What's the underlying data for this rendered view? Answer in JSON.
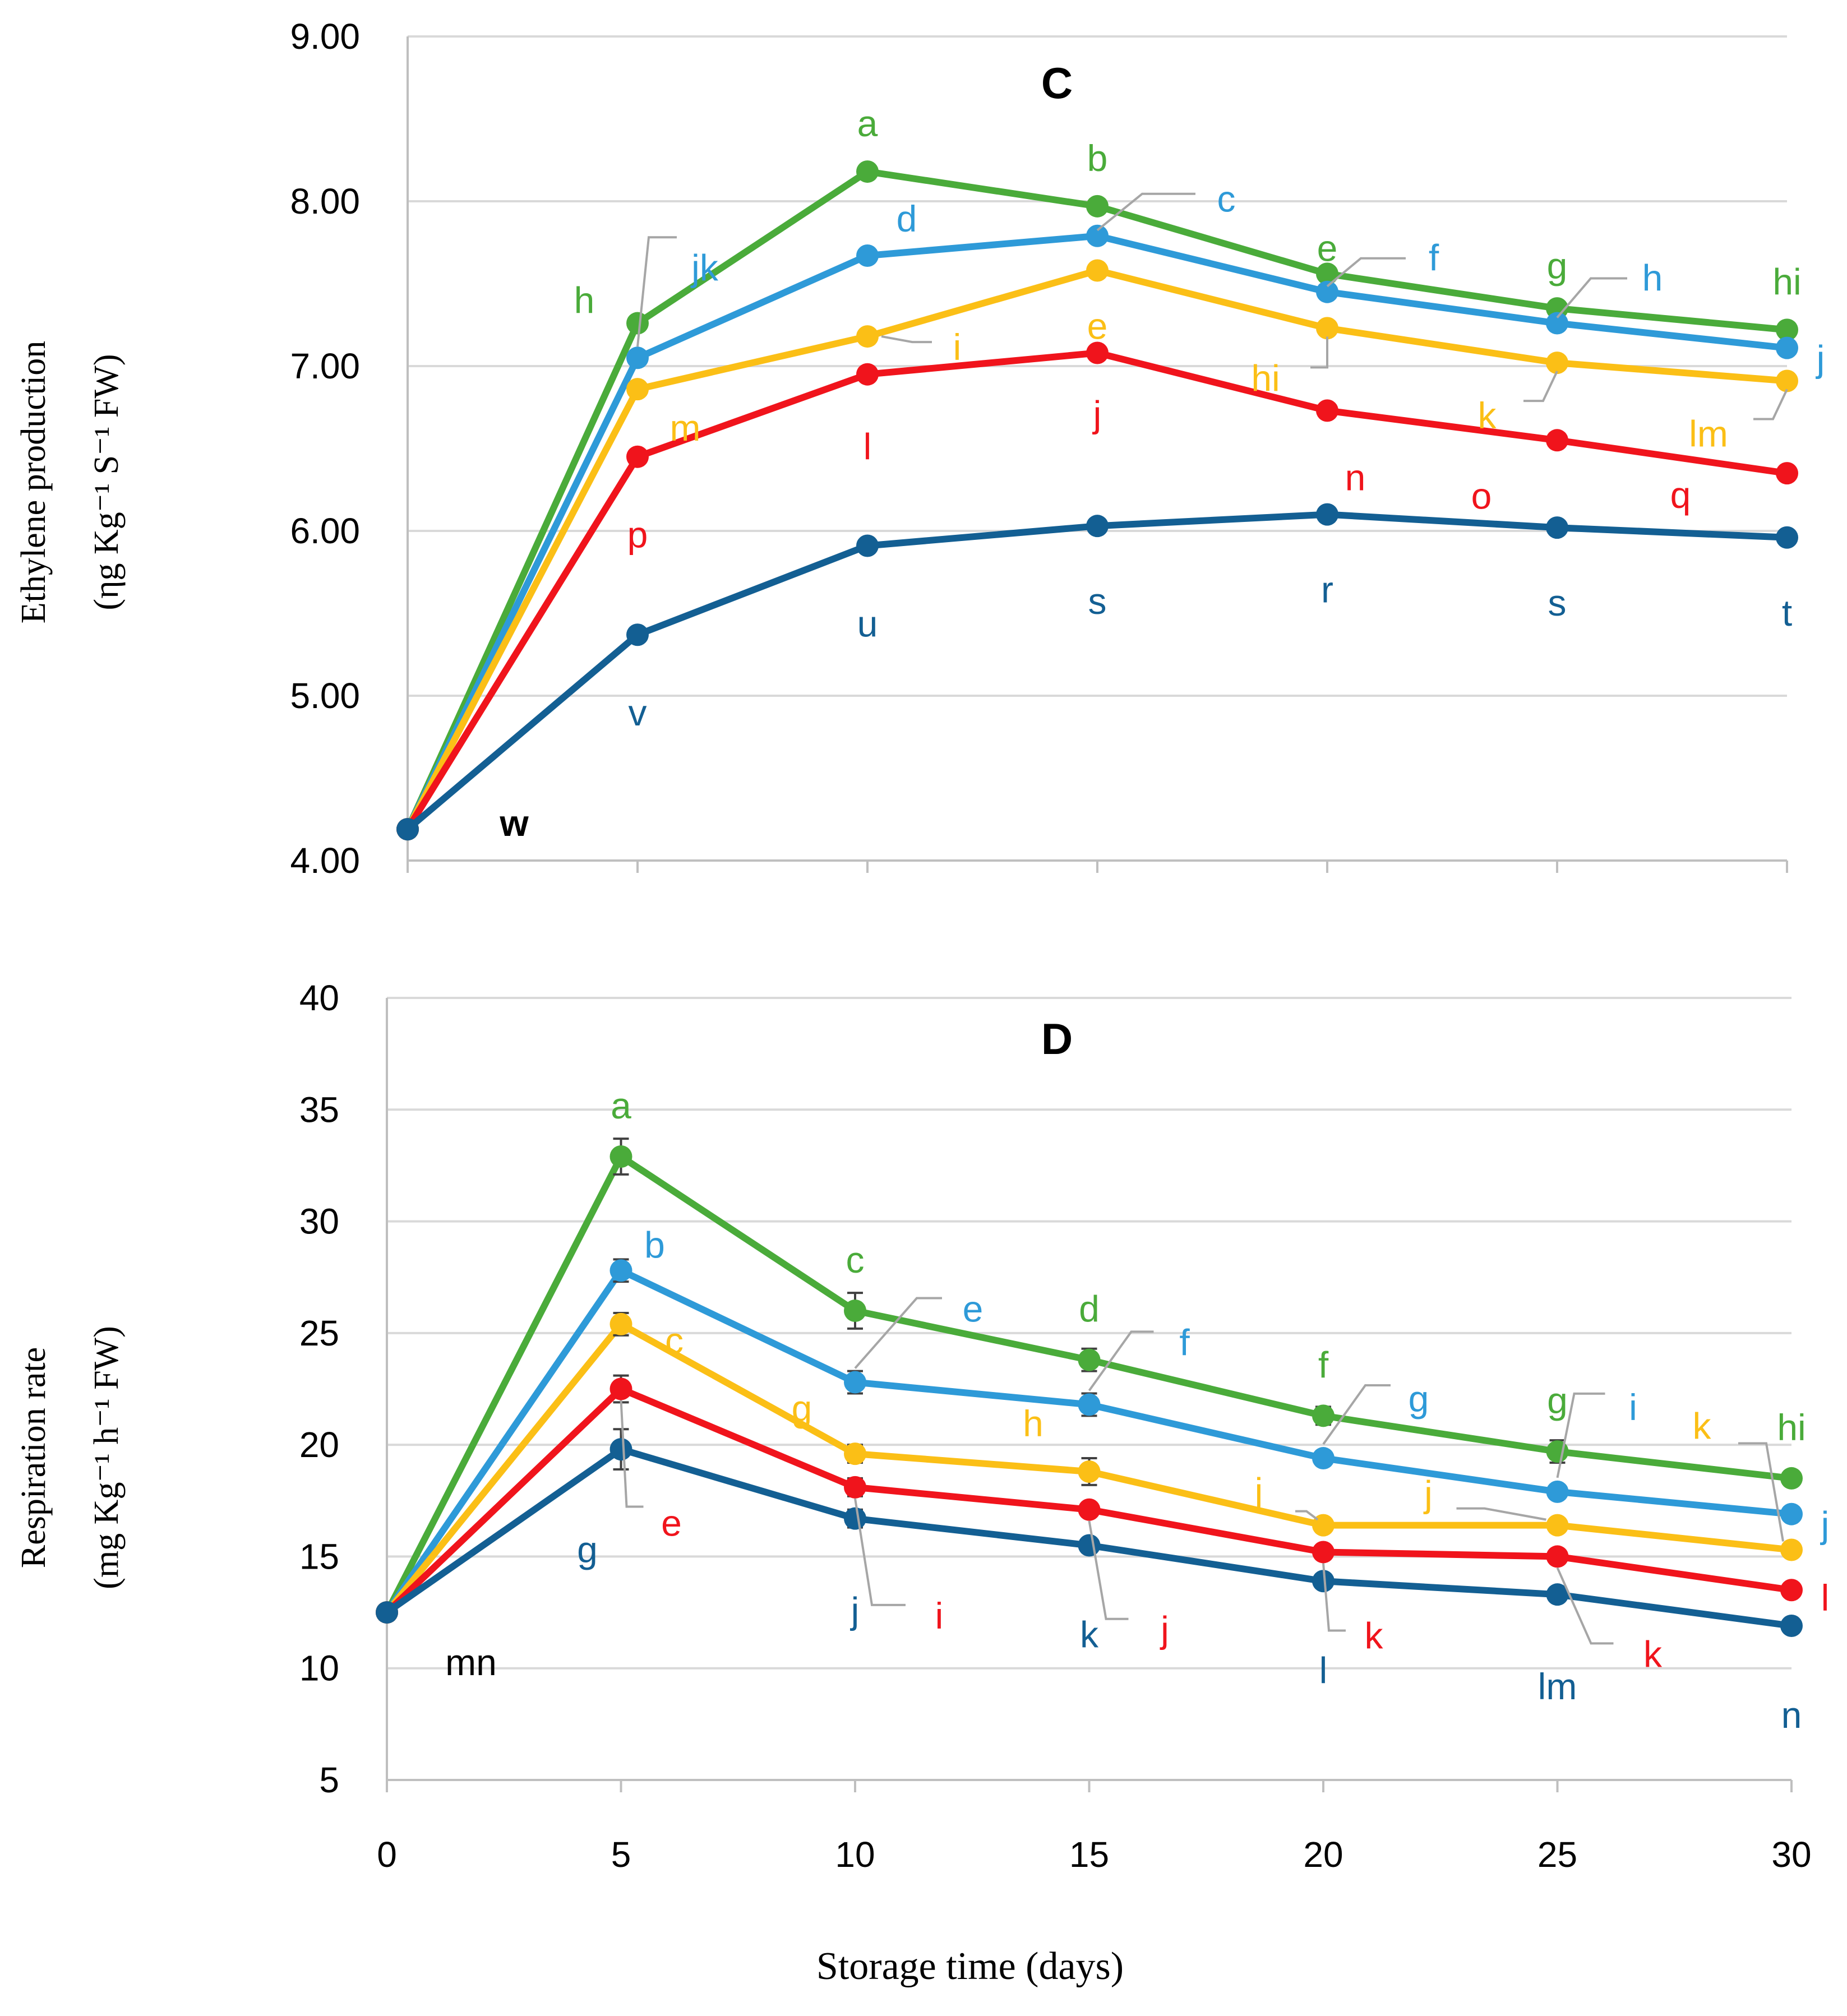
{
  "chart_data": [
    {
      "type": "line",
      "title": "C",
      "ylabel_line1": "Ethylene production",
      "ylabel_line2": "(ηg Kg⁻¹ S⁻¹ FW)",
      "xlabel": "",
      "x": [
        0,
        5,
        10,
        15,
        20,
        25,
        30
      ],
      "ylim": [
        4,
        9
      ],
      "yticks": [
        "4.00",
        "5.00",
        "6.00",
        "7.00",
        "8.00",
        "9.00"
      ],
      "grid": true,
      "legend": "none",
      "series": [
        {
          "name": "green",
          "color": "#4aab3a",
          "values": [
            4.19,
            7.26,
            8.18,
            7.97,
            7.56,
            7.35,
            7.22
          ],
          "letters": [
            "",
            "h",
            "a",
            "b",
            "e",
            "g",
            "hi"
          ]
        },
        {
          "name": "light-blue",
          "color": "#2e9ad8",
          "values": [
            4.19,
            7.05,
            7.67,
            7.79,
            7.45,
            7.26,
            7.11
          ],
          "letters": [
            "",
            "jk",
            "d",
            "c",
            "f",
            "h",
            "j"
          ]
        },
        {
          "name": "yellow",
          "color": "#fbbf16",
          "values": [
            4.19,
            6.86,
            7.18,
            7.58,
            7.23,
            7.02,
            6.91
          ],
          "letters": [
            "",
            "m",
            "i",
            "e",
            "hi",
            "k",
            "lm"
          ]
        },
        {
          "name": "red",
          "color": "#f0141c",
          "values": [
            4.19,
            6.45,
            6.95,
            7.08,
            6.73,
            6.55,
            6.35
          ],
          "letters": [
            "",
            "p",
            "l",
            "j",
            "n",
            "o",
            "q"
          ]
        },
        {
          "name": "dark-blue",
          "color": "#135f93",
          "values": [
            4.19,
            5.37,
            5.91,
            6.03,
            6.1,
            6.02,
            5.96
          ],
          "letters": [
            "w",
            "v",
            "u",
            "s",
            "r",
            "s",
            "t"
          ]
        }
      ]
    },
    {
      "type": "line",
      "title": "D",
      "ylabel_line1": "Respiration rate",
      "ylabel_line2": "(mg Kg⁻¹ h⁻¹ FW)",
      "xlabel": "Storage time (days)",
      "x": [
        0,
        5,
        10,
        15,
        20,
        25,
        30
      ],
      "xticks": [
        "0",
        "5",
        "10",
        "15",
        "20",
        "25",
        "30"
      ],
      "ylim": [
        5,
        40
      ],
      "yticks": [
        "5",
        "10",
        "15",
        "20",
        "25",
        "30",
        "35",
        "40"
      ],
      "grid": true,
      "legend": "none",
      "series": [
        {
          "name": "green",
          "color": "#4aab3a",
          "values": [
            12.5,
            32.9,
            26.0,
            23.8,
            21.3,
            19.7,
            18.5
          ],
          "errors": [
            0,
            0.8,
            0.8,
            0.5,
            0.4,
            0.5,
            0.3
          ],
          "letters": [
            "",
            "a",
            "c",
            "d",
            "f",
            "g",
            "hi"
          ]
        },
        {
          "name": "light-blue",
          "color": "#2e9ad8",
          "values": [
            12.5,
            27.8,
            22.8,
            21.8,
            19.4,
            17.9,
            16.9
          ],
          "errors": [
            0,
            0.5,
            0.5,
            0.5,
            0.3,
            0.3,
            0.3
          ],
          "letters": [
            "",
            "b",
            "e",
            "f",
            "g",
            "i",
            "j"
          ]
        },
        {
          "name": "yellow",
          "color": "#fbbf16",
          "values": [
            12.5,
            25.4,
            19.6,
            18.8,
            16.4,
            16.4,
            15.3
          ],
          "errors": [
            0,
            0.5,
            0.4,
            0.6,
            0.3,
            0.3,
            0.3
          ],
          "letters": [
            "",
            "c",
            "g",
            "h",
            "j",
            "j",
            "k"
          ]
        },
        {
          "name": "red",
          "color": "#f0141c",
          "values": [
            12.5,
            22.5,
            18.1,
            17.1,
            15.2,
            15.0,
            13.5
          ],
          "errors": [
            0,
            0.6,
            0.4,
            0.3,
            0.3,
            0.3,
            0.2
          ],
          "letters": [
            "",
            "e",
            "i",
            "j",
            "k",
            "k",
            "l"
          ]
        },
        {
          "name": "dark-blue",
          "color": "#135f93",
          "values": [
            12.5,
            19.8,
            16.7,
            15.5,
            13.9,
            13.3,
            11.9
          ],
          "errors": [
            0,
            0.9,
            0.4,
            0.3,
            0.3,
            0.2,
            0.2
          ],
          "letters": [
            "mn",
            "g",
            "j",
            "k",
            "l",
            "lm",
            "n"
          ]
        }
      ]
    }
  ]
}
